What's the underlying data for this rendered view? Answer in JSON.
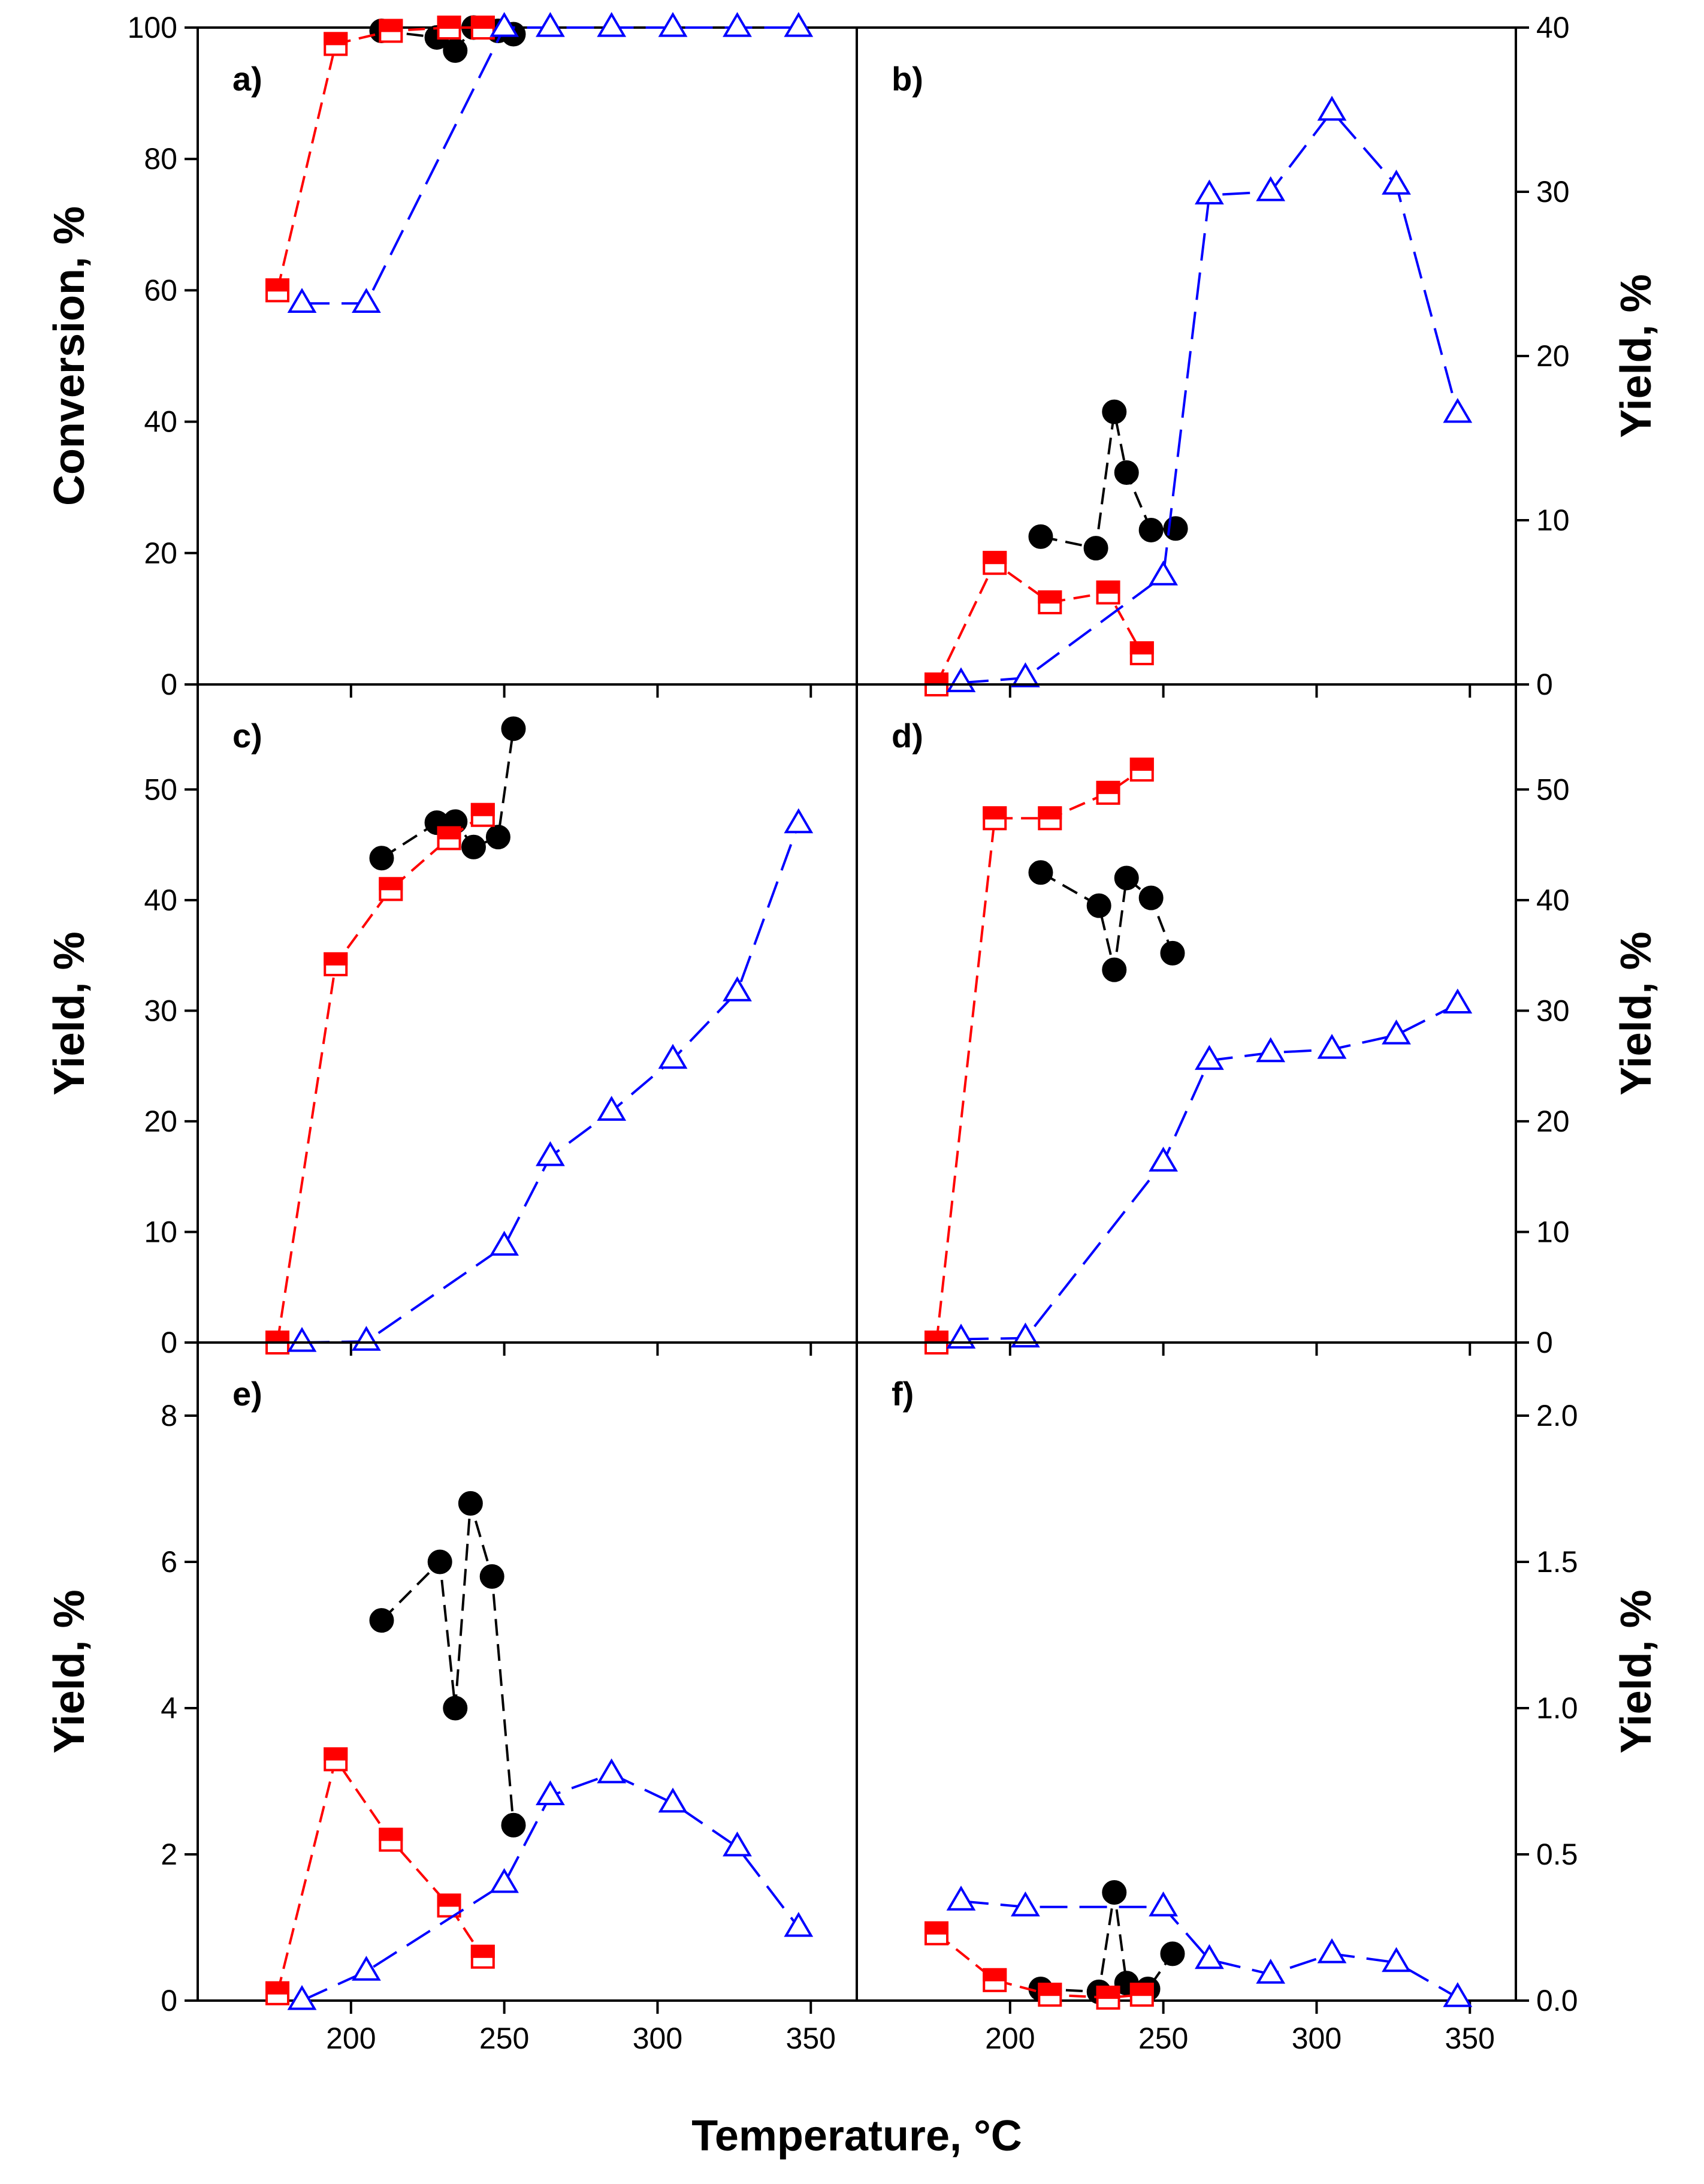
{
  "figure": {
    "xlabel": "Temperature, °C",
    "color_red": "#ff0000",
    "color_blue": "#0000ff",
    "color_black": "#000000"
  },
  "chart_data": [
    {
      "type": "line",
      "panel": "a)",
      "ylabel": "Conversion, %",
      "xlim": [
        150,
        365
      ],
      "ylim": [
        0,
        100
      ],
      "xticks": [
        200,
        250,
        300,
        350
      ],
      "yticks": [
        0,
        20,
        40,
        60,
        80,
        100
      ],
      "y_axis_side": "left",
      "series": [
        {
          "marker": "circle-filled",
          "color": "#000000",
          "x": [
            210,
            228,
            234,
            240,
            248,
            253
          ],
          "y": [
            99.5,
            98.5,
            96.5,
            100,
            99.5,
            99
          ]
        },
        {
          "marker": "square-half",
          "color": "#ff0000",
          "x": [
            176,
            195,
            213,
            232,
            243
          ],
          "y": [
            60,
            97.5,
            99.5,
            100,
            100
          ]
        },
        {
          "marker": "triangle-open",
          "color": "#0000ff",
          "x": [
            184,
            205,
            250,
            265,
            285,
            305,
            326,
            346
          ],
          "y": [
            58,
            58,
            100,
            100,
            100,
            100,
            100,
            100
          ]
        }
      ]
    },
    {
      "type": "line",
      "panel": "b)",
      "ylabel": "Yield, %",
      "xlim": [
        150,
        365
      ],
      "ylim": [
        0,
        40
      ],
      "xticks": [
        200,
        250,
        300,
        350
      ],
      "yticks": [
        0,
        10,
        20,
        30,
        40
      ],
      "y_axis_side": "right",
      "series": [
        {
          "marker": "circle-filled",
          "color": "#000000",
          "x": [
            210,
            228,
            234,
            238,
            246,
            254
          ],
          "y": [
            9,
            8.3,
            16.6,
            12.9,
            9.4,
            9.5
          ]
        },
        {
          "marker": "square-half",
          "color": "#ff0000",
          "x": [
            176,
            195,
            213,
            232,
            243
          ],
          "y": [
            0,
            7.4,
            5,
            5.6,
            1.9
          ]
        },
        {
          "marker": "triangle-open",
          "color": "#0000ff",
          "x": [
            184,
            205,
            250,
            265,
            285,
            305,
            326,
            346
          ],
          "y": [
            0.1,
            0.4,
            6.6,
            29.8,
            30,
            34.9,
            30.4,
            16.5
          ]
        }
      ]
    },
    {
      "type": "line",
      "panel": "c)",
      "ylabel": "Yield, %",
      "xlim": [
        150,
        365
      ],
      "ylim": [
        0,
        59.5
      ],
      "xticks": [
        200,
        250,
        300,
        350
      ],
      "yticks": [
        0,
        10,
        20,
        30,
        40,
        50
      ],
      "y_axis_side": "left",
      "series": [
        {
          "marker": "circle-filled",
          "color": "#000000",
          "x": [
            210,
            228,
            234,
            240,
            248,
            253
          ],
          "y": [
            43.8,
            47,
            47.1,
            44.8,
            45.7,
            55.5
          ]
        },
        {
          "marker": "square-half",
          "color": "#ff0000",
          "x": [
            176,
            195,
            213,
            232,
            243
          ],
          "y": [
            0,
            34.2,
            41,
            45.6,
            47.7
          ]
        },
        {
          "marker": "triangle-open",
          "color": "#0000ff",
          "x": [
            184,
            205,
            250,
            265,
            285,
            305,
            326,
            346
          ],
          "y": [
            0,
            0.1,
            8.7,
            16.8,
            20.9,
            25.6,
            31.7,
            46.9
          ]
        }
      ]
    },
    {
      "type": "line",
      "panel": "d)",
      "ylabel": "Yield, %",
      "xlim": [
        150,
        365
      ],
      "ylim": [
        0,
        59.5
      ],
      "xticks": [
        200,
        250,
        300,
        350
      ],
      "yticks": [
        0,
        10,
        20,
        30,
        40,
        50
      ],
      "y_axis_side": "right",
      "series": [
        {
          "marker": "circle-filled",
          "color": "#000000",
          "x": [
            210,
            229,
            234,
            238,
            246,
            253
          ],
          "y": [
            42.5,
            39.5,
            33.7,
            42,
            40.2,
            35.2
          ]
        },
        {
          "marker": "square-half",
          "color": "#ff0000",
          "x": [
            176,
            195,
            213,
            232,
            243
          ],
          "y": [
            0,
            47.4,
            47.4,
            49.7,
            51.8
          ]
        },
        {
          "marker": "triangle-open",
          "color": "#0000ff",
          "x": [
            184,
            205,
            250,
            265,
            285,
            305,
            326,
            346
          ],
          "y": [
            0.3,
            0.4,
            16.3,
            25.5,
            26.2,
            26.5,
            27.8,
            30.6
          ]
        }
      ]
    },
    {
      "type": "line",
      "panel": "e)",
      "ylabel": "Yield, %",
      "xlim": [
        150,
        365
      ],
      "ylim": [
        0,
        9
      ],
      "xticks": [
        200,
        250,
        300,
        350
      ],
      "yticks": [
        0,
        2,
        4,
        6,
        8
      ],
      "y_axis_side": "left",
      "series": [
        {
          "marker": "circle-filled",
          "color": "#000000",
          "x": [
            210,
            229,
            234,
            239,
            246,
            253
          ],
          "y": [
            5.2,
            6,
            4,
            6.8,
            5.8,
            2.4
          ]
        },
        {
          "marker": "square-half",
          "color": "#ff0000",
          "x": [
            176,
            195,
            213,
            232,
            243
          ],
          "y": [
            0.1,
            3.3,
            2.2,
            1.3,
            0.6
          ]
        },
        {
          "marker": "triangle-open",
          "color": "#0000ff",
          "x": [
            184,
            205,
            250,
            265,
            285,
            305,
            326,
            346
          ],
          "y": [
            0,
            0.4,
            1.6,
            2.8,
            3.1,
            2.7,
            2.1,
            1
          ]
        }
      ]
    },
    {
      "type": "line",
      "panel": "f)",
      "ylabel": "Yield, %",
      "xlim": [
        150,
        365
      ],
      "ylim": [
        0,
        2.25
      ],
      "xticks": [
        200,
        250,
        300,
        350
      ],
      "yticks": [
        "0.0",
        "0.5",
        "1.0",
        "1.5",
        "2.0"
      ],
      "y_axis_side": "right",
      "series": [
        {
          "marker": "circle-filled",
          "color": "#000000",
          "x": [
            210,
            229,
            234,
            238,
            245,
            253
          ],
          "y": [
            0.04,
            0.03,
            0.37,
            0.06,
            0.04,
            0.16
          ]
        },
        {
          "marker": "square-half",
          "color": "#ff0000",
          "x": [
            176,
            195,
            213,
            232,
            243
          ],
          "y": [
            0.23,
            0.07,
            0.02,
            0.01,
            0.02
          ]
        },
        {
          "marker": "triangle-open",
          "color": "#0000ff",
          "x": [
            184,
            205,
            250,
            265,
            285,
            305,
            326,
            346
          ],
          "y": [
            0.34,
            0.32,
            0.32,
            0.14,
            0.09,
            0.16,
            0.13,
            0.01
          ]
        }
      ]
    }
  ]
}
